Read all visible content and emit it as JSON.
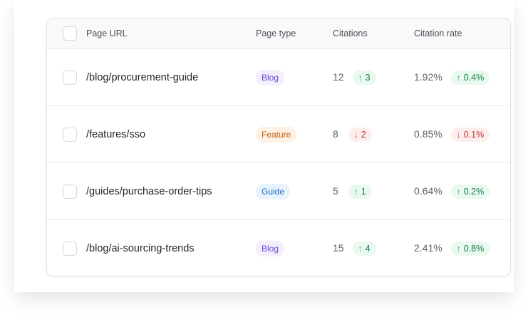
{
  "columns": {
    "url": "Page URL",
    "type": "Page type",
    "citations": "Citations",
    "rate": "Citation rate"
  },
  "type_colors": {
    "Blog": {
      "bg": "#f3effd",
      "fg": "#7046d6"
    },
    "Feature": {
      "bg": "#fdf1e4",
      "fg": "#c45e0c"
    },
    "Guide": {
      "bg": "#e9f3fd",
      "fg": "#1f6bc2"
    }
  },
  "rows": [
    {
      "url": "/blog/procurement-guide",
      "type": "Blog",
      "citations": "12",
      "citations_delta": "3",
      "citations_dir": "up",
      "rate": "1.92%",
      "rate_delta": "0.4%",
      "rate_dir": "up"
    },
    {
      "url": "/features/sso",
      "type": "Feature",
      "citations": "8",
      "citations_delta": "2",
      "citations_dir": "down",
      "rate": "0.85%",
      "rate_delta": "0.1%",
      "rate_dir": "down"
    },
    {
      "url": "/guides/purchase-order-tips",
      "type": "Guide",
      "citations": "5",
      "citations_delta": "1",
      "citations_dir": "up",
      "rate": "0.64%",
      "rate_delta": "0.2%",
      "rate_dir": "up"
    },
    {
      "url": "/blog/ai-sourcing-trends",
      "type": "Blog",
      "citations": "15",
      "citations_delta": "4",
      "citations_dir": "up",
      "rate": "2.41%",
      "rate_delta": "0.8%",
      "rate_dir": "up"
    }
  ]
}
